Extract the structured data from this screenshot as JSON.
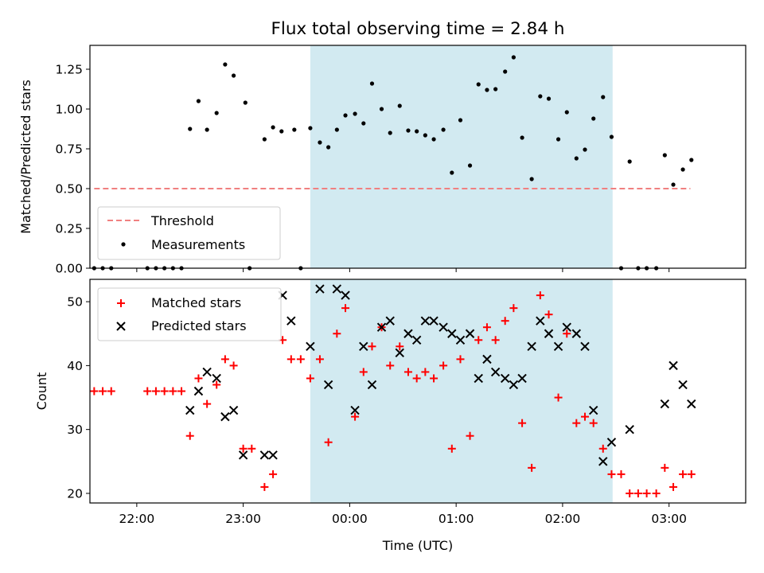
{
  "chart_data": [
    {
      "type": "scatter",
      "title": "Flux total observing time = 2.84 h",
      "ylabel": "Matched/Predicted stars",
      "xlabel": "",
      "ylim": [
        0,
        1.4
      ],
      "yticks": [
        0.0,
        0.25,
        0.5,
        0.75,
        1.0,
        1.25
      ],
      "ytick_labels": [
        "0.00",
        "0.25",
        "0.50",
        "0.75",
        "1.00",
        "1.25"
      ],
      "x_unit": "hours from 00:00 UTC",
      "xlim": [
        -2.44,
        3.72
      ],
      "xticks": [
        -2,
        -1,
        0,
        1,
        2,
        3
      ],
      "shaded_span": [
        -0.37,
        2.47
      ],
      "shaded_color": "#add8e6",
      "grid": false,
      "legend_position": "lower-left",
      "threshold": {
        "name": "Threshold",
        "value": 0.5,
        "x_range": [
          -2.4,
          3.2
        ],
        "color": "#f08080",
        "style": "dashed"
      },
      "series": [
        {
          "name": "Measurements",
          "color": "#000000",
          "marker": "dot",
          "points": [
            [
              -2.4,
              0.0
            ],
            [
              -2.32,
              0.0
            ],
            [
              -2.24,
              0.0
            ],
            [
              -1.9,
              0.0
            ],
            [
              -1.82,
              0.0
            ],
            [
              -1.74,
              0.0
            ],
            [
              -1.66,
              0.0
            ],
            [
              -1.58,
              0.0
            ],
            [
              -1.5,
              0.875
            ],
            [
              -1.42,
              1.05
            ],
            [
              -1.34,
              0.87
            ],
            [
              -1.25,
              0.975
            ],
            [
              -1.17,
              1.28
            ],
            [
              -1.09,
              1.21
            ],
            [
              -0.98,
              1.04
            ],
            [
              -0.94,
              0.0
            ],
            [
              -0.8,
              0.81
            ],
            [
              -0.72,
              0.885
            ],
            [
              -0.64,
              0.86
            ],
            [
              -0.52,
              0.87
            ],
            [
              -0.46,
              0.0
            ],
            [
              -0.37,
              0.88
            ],
            [
              -0.28,
              0.79
            ],
            [
              -0.2,
              0.76
            ],
            [
              -0.12,
              0.87
            ],
            [
              -0.04,
              0.96
            ],
            [
              0.05,
              0.97
            ],
            [
              0.13,
              0.91
            ],
            [
              0.21,
              1.16
            ],
            [
              0.3,
              1.0
            ],
            [
              0.38,
              0.85
            ],
            [
              0.47,
              1.02
            ],
            [
              0.55,
              0.865
            ],
            [
              0.63,
              0.86
            ],
            [
              0.71,
              0.835
            ],
            [
              0.79,
              0.81
            ],
            [
              0.88,
              0.87
            ],
            [
              0.96,
              0.6
            ],
            [
              1.04,
              0.93
            ],
            [
              1.13,
              0.645
            ],
            [
              1.21,
              1.155
            ],
            [
              1.29,
              1.12
            ],
            [
              1.37,
              1.125
            ],
            [
              1.46,
              1.235
            ],
            [
              1.54,
              1.325
            ],
            [
              1.62,
              0.82
            ],
            [
              1.71,
              0.56
            ],
            [
              1.79,
              1.08
            ],
            [
              1.87,
              1.065
            ],
            [
              1.96,
              0.81
            ],
            [
              2.04,
              0.98
            ],
            [
              2.13,
              0.69
            ],
            [
              2.21,
              0.745
            ],
            [
              2.29,
              0.94
            ],
            [
              2.38,
              1.075
            ],
            [
              2.46,
              0.825
            ],
            [
              2.55,
              0.0
            ],
            [
              2.63,
              0.67
            ],
            [
              2.71,
              0.0
            ],
            [
              2.79,
              0.0
            ],
            [
              2.88,
              0.0
            ],
            [
              2.96,
              0.71
            ],
            [
              3.04,
              0.525
            ],
            [
              3.13,
              0.62
            ],
            [
              3.21,
              0.68
            ]
          ]
        }
      ]
    },
    {
      "type": "scatter",
      "title": "",
      "xlabel": "Time (UTC)",
      "ylabel": "Count",
      "ylim": [
        18.5,
        53.5
      ],
      "yticks": [
        20,
        30,
        40,
        50
      ],
      "ytick_labels": [
        "20",
        "30",
        "40",
        "50"
      ],
      "x_unit": "hours from 00:00 UTC",
      "xlim": [
        -2.44,
        3.72
      ],
      "xticks": [
        -2,
        -1,
        0,
        1,
        2,
        3
      ],
      "xtick_labels": [
        "22:00",
        "23:00",
        "00:00",
        "01:00",
        "02:00",
        "03:00"
      ],
      "shaded_span": [
        -0.37,
        2.47
      ],
      "shaded_color": "#add8e6",
      "grid": false,
      "legend_position": "upper-left",
      "series": [
        {
          "name": "Matched stars",
          "color": "#ff0000",
          "marker": "plus",
          "points": [
            [
              -2.4,
              36
            ],
            [
              -2.32,
              36
            ],
            [
              -2.24,
              36
            ],
            [
              -1.9,
              36
            ],
            [
              -1.82,
              36
            ],
            [
              -1.74,
              36
            ],
            [
              -1.66,
              36
            ],
            [
              -1.58,
              36
            ],
            [
              -1.5,
              29
            ],
            [
              -1.42,
              38
            ],
            [
              -1.34,
              34
            ],
            [
              -1.25,
              37
            ],
            [
              -1.17,
              41
            ],
            [
              -1.09,
              40
            ],
            [
              -1.0,
              27
            ],
            [
              -0.92,
              27
            ],
            [
              -0.8,
              21
            ],
            [
              -0.72,
              23
            ],
            [
              -0.63,
              44
            ],
            [
              -0.55,
              41
            ],
            [
              -0.46,
              41
            ],
            [
              -0.37,
              38
            ],
            [
              -0.28,
              41
            ],
            [
              -0.2,
              28
            ],
            [
              -0.12,
              45
            ],
            [
              -0.04,
              49
            ],
            [
              0.05,
              32
            ],
            [
              0.13,
              39
            ],
            [
              0.21,
              43
            ],
            [
              0.3,
              46
            ],
            [
              0.38,
              40
            ],
            [
              0.47,
              43
            ],
            [
              0.55,
              39
            ],
            [
              0.63,
              38
            ],
            [
              0.71,
              39
            ],
            [
              0.79,
              38
            ],
            [
              0.88,
              40
            ],
            [
              0.96,
              27
            ],
            [
              1.04,
              41
            ],
            [
              1.13,
              29
            ],
            [
              1.21,
              44
            ],
            [
              1.29,
              46
            ],
            [
              1.37,
              44
            ],
            [
              1.46,
              47
            ],
            [
              1.54,
              49
            ],
            [
              1.62,
              31
            ],
            [
              1.71,
              24
            ],
            [
              1.79,
              51
            ],
            [
              1.87,
              48
            ],
            [
              1.96,
              35
            ],
            [
              2.04,
              45
            ],
            [
              2.13,
              31
            ],
            [
              2.21,
              32
            ],
            [
              2.29,
              31
            ],
            [
              2.38,
              27
            ],
            [
              2.46,
              23
            ],
            [
              2.55,
              23
            ],
            [
              2.63,
              20
            ],
            [
              2.71,
              20
            ],
            [
              2.79,
              20
            ],
            [
              2.88,
              20
            ],
            [
              2.96,
              24
            ],
            [
              3.04,
              21
            ],
            [
              3.13,
              23
            ],
            [
              3.21,
              23
            ]
          ]
        },
        {
          "name": "Predicted stars",
          "color": "#000000",
          "marker": "x",
          "points": [
            [
              -1.5,
              33
            ],
            [
              -1.42,
              36
            ],
            [
              -1.34,
              39
            ],
            [
              -1.25,
              38
            ],
            [
              -1.17,
              32
            ],
            [
              -1.09,
              33
            ],
            [
              -1.0,
              26
            ],
            [
              -0.8,
              26
            ],
            [
              -0.72,
              26
            ],
            [
              -0.63,
              51
            ],
            [
              -0.55,
              47
            ],
            [
              -0.37,
              43
            ],
            [
              -0.28,
              52
            ],
            [
              -0.2,
              37
            ],
            [
              -0.12,
              52
            ],
            [
              -0.04,
              51
            ],
            [
              0.05,
              33
            ],
            [
              0.13,
              43
            ],
            [
              0.21,
              37
            ],
            [
              0.3,
              46
            ],
            [
              0.38,
              47
            ],
            [
              0.47,
              42
            ],
            [
              0.55,
              45
            ],
            [
              0.63,
              44
            ],
            [
              0.71,
              47
            ],
            [
              0.79,
              47
            ],
            [
              0.88,
              46
            ],
            [
              0.96,
              45
            ],
            [
              1.04,
              44
            ],
            [
              1.13,
              45
            ],
            [
              1.21,
              38
            ],
            [
              1.29,
              41
            ],
            [
              1.37,
              39
            ],
            [
              1.46,
              38
            ],
            [
              1.54,
              37
            ],
            [
              1.62,
              38
            ],
            [
              1.71,
              43
            ],
            [
              1.79,
              47
            ],
            [
              1.87,
              45
            ],
            [
              1.96,
              43
            ],
            [
              2.04,
              46
            ],
            [
              2.13,
              45
            ],
            [
              2.21,
              43
            ],
            [
              2.29,
              33
            ],
            [
              2.38,
              25
            ],
            [
              2.46,
              28
            ],
            [
              2.63,
              30
            ],
            [
              2.96,
              34
            ],
            [
              3.04,
              40
            ],
            [
              3.13,
              37
            ],
            [
              3.21,
              34
            ]
          ]
        }
      ]
    }
  ]
}
